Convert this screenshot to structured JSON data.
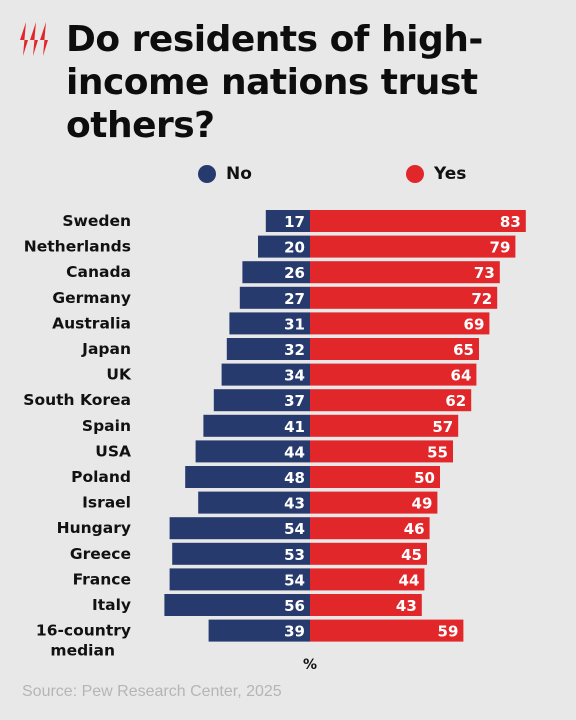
{
  "title": "Do residents of high-income nations trust others?",
  "legend": {
    "no": "No",
    "yes": "Yes"
  },
  "colors": {
    "no": "#263a6e",
    "yes": "#e2272b",
    "background": "#e8e8e8",
    "logo": "#e2272b"
  },
  "x_unit": "%",
  "source": "Source: Pew Research Center, 2025",
  "chart_data": {
    "type": "bar",
    "orientation": "horizontal-diverging",
    "categories": [
      "Sweden",
      "Netherlands",
      "Canada",
      "Germany",
      "Australia",
      "Japan",
      "UK",
      "South Korea",
      "Spain",
      "USA",
      "Poland",
      "Israel",
      "Hungary",
      "Greece",
      "France",
      "Italy",
      "16-country median"
    ],
    "series": [
      {
        "name": "No",
        "values": [
          17,
          20,
          26,
          27,
          31,
          32,
          34,
          37,
          41,
          44,
          48,
          43,
          54,
          53,
          54,
          56,
          39
        ]
      },
      {
        "name": "Yes",
        "values": [
          83,
          79,
          73,
          72,
          69,
          65,
          64,
          62,
          57,
          55,
          50,
          49,
          46,
          45,
          44,
          43,
          59
        ]
      }
    ],
    "xlabel": "%"
  }
}
